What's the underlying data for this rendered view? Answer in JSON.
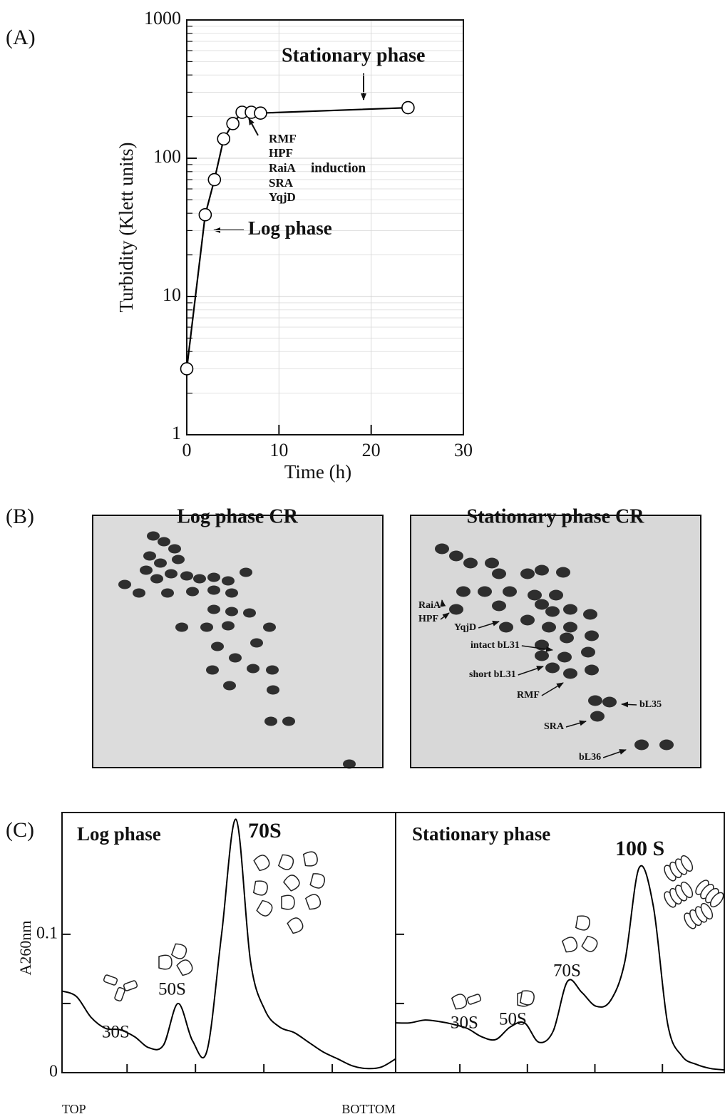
{
  "chart_data": [
    {
      "type": "line",
      "panel_label": "(A)",
      "ylabel": "Turbidity (Klett units)",
      "xlabel": "Time (h)",
      "x": [
        0,
        2,
        3,
        4,
        5,
        6,
        7,
        8,
        24
      ],
      "values": [
        3,
        39,
        70,
        138,
        178,
        215,
        215,
        212,
        232
      ],
      "xlim": [
        0,
        30
      ],
      "xticks": [
        0,
        10,
        20,
        30
      ],
      "ylim": [
        1,
        1000
      ],
      "yticks": [
        1,
        10,
        100,
        1000
      ],
      "minor_yticks": [
        2,
        3,
        4,
        5,
        6,
        7,
        8,
        9,
        20,
        30,
        40,
        50,
        60,
        70,
        80,
        90,
        200,
        300,
        400,
        500,
        600,
        700,
        800,
        900
      ],
      "log_y": true,
      "grid": true,
      "color": "#000000",
      "annotations": [
        "Stationary phase",
        "Log phase",
        "RMF",
        "HPF",
        "RaiA",
        "SRA",
        "YqjD",
        "induction"
      ]
    },
    {
      "type": "profile",
      "panel_label": "(C)",
      "ylabel": "A260nm",
      "x_axis_labels": [
        "TOP",
        "BOTTOM"
      ],
      "values": [
        0.059,
        0.055,
        0.04,
        0.032,
        0.031,
        0.026,
        0.018,
        0.02,
        0.05,
        0.023,
        0.016,
        0.1,
        0.183,
        0.08,
        0.045,
        0.033,
        0.029,
        0.022,
        0.015,
        0.01,
        0.005,
        0.003,
        0.004,
        0.01
      ],
      "ylim": [
        0,
        0.188
      ],
      "yticks": [
        0,
        0.1
      ],
      "minor_yticks": [
        0.05
      ],
      "color": "#000000",
      "annotations": [
        "Log phase",
        "70S",
        "30S",
        "50S"
      ]
    },
    {
      "type": "profile",
      "values": [
        0.036,
        0.036,
        0.038,
        0.037,
        0.035,
        0.032,
        0.026,
        0.024,
        0.033,
        0.036,
        0.022,
        0.03,
        0.066,
        0.058,
        0.048,
        0.052,
        0.08,
        0.148,
        0.12,
        0.035,
        0.012,
        0.006,
        0.003,
        0.002
      ],
      "ylim": [
        0,
        0.188
      ],
      "minor_yticks": [
        0.05,
        0.1
      ],
      "color": "#000000",
      "annotations": [
        "Stationary phase",
        "100 S",
        "70S",
        "50S",
        "30S"
      ]
    }
  ],
  "gels": {
    "panel_label": "(B)",
    "panels": [
      {
        "title": "Log phase CR"
      },
      {
        "title": "Stationary phase CR",
        "annotations": [
          "RaiA",
          "HPF",
          "YqjD",
          "intact bL31",
          "short bL31",
          "RMF",
          "bL35",
          "SRA",
          "bL36"
        ]
      }
    ]
  }
}
